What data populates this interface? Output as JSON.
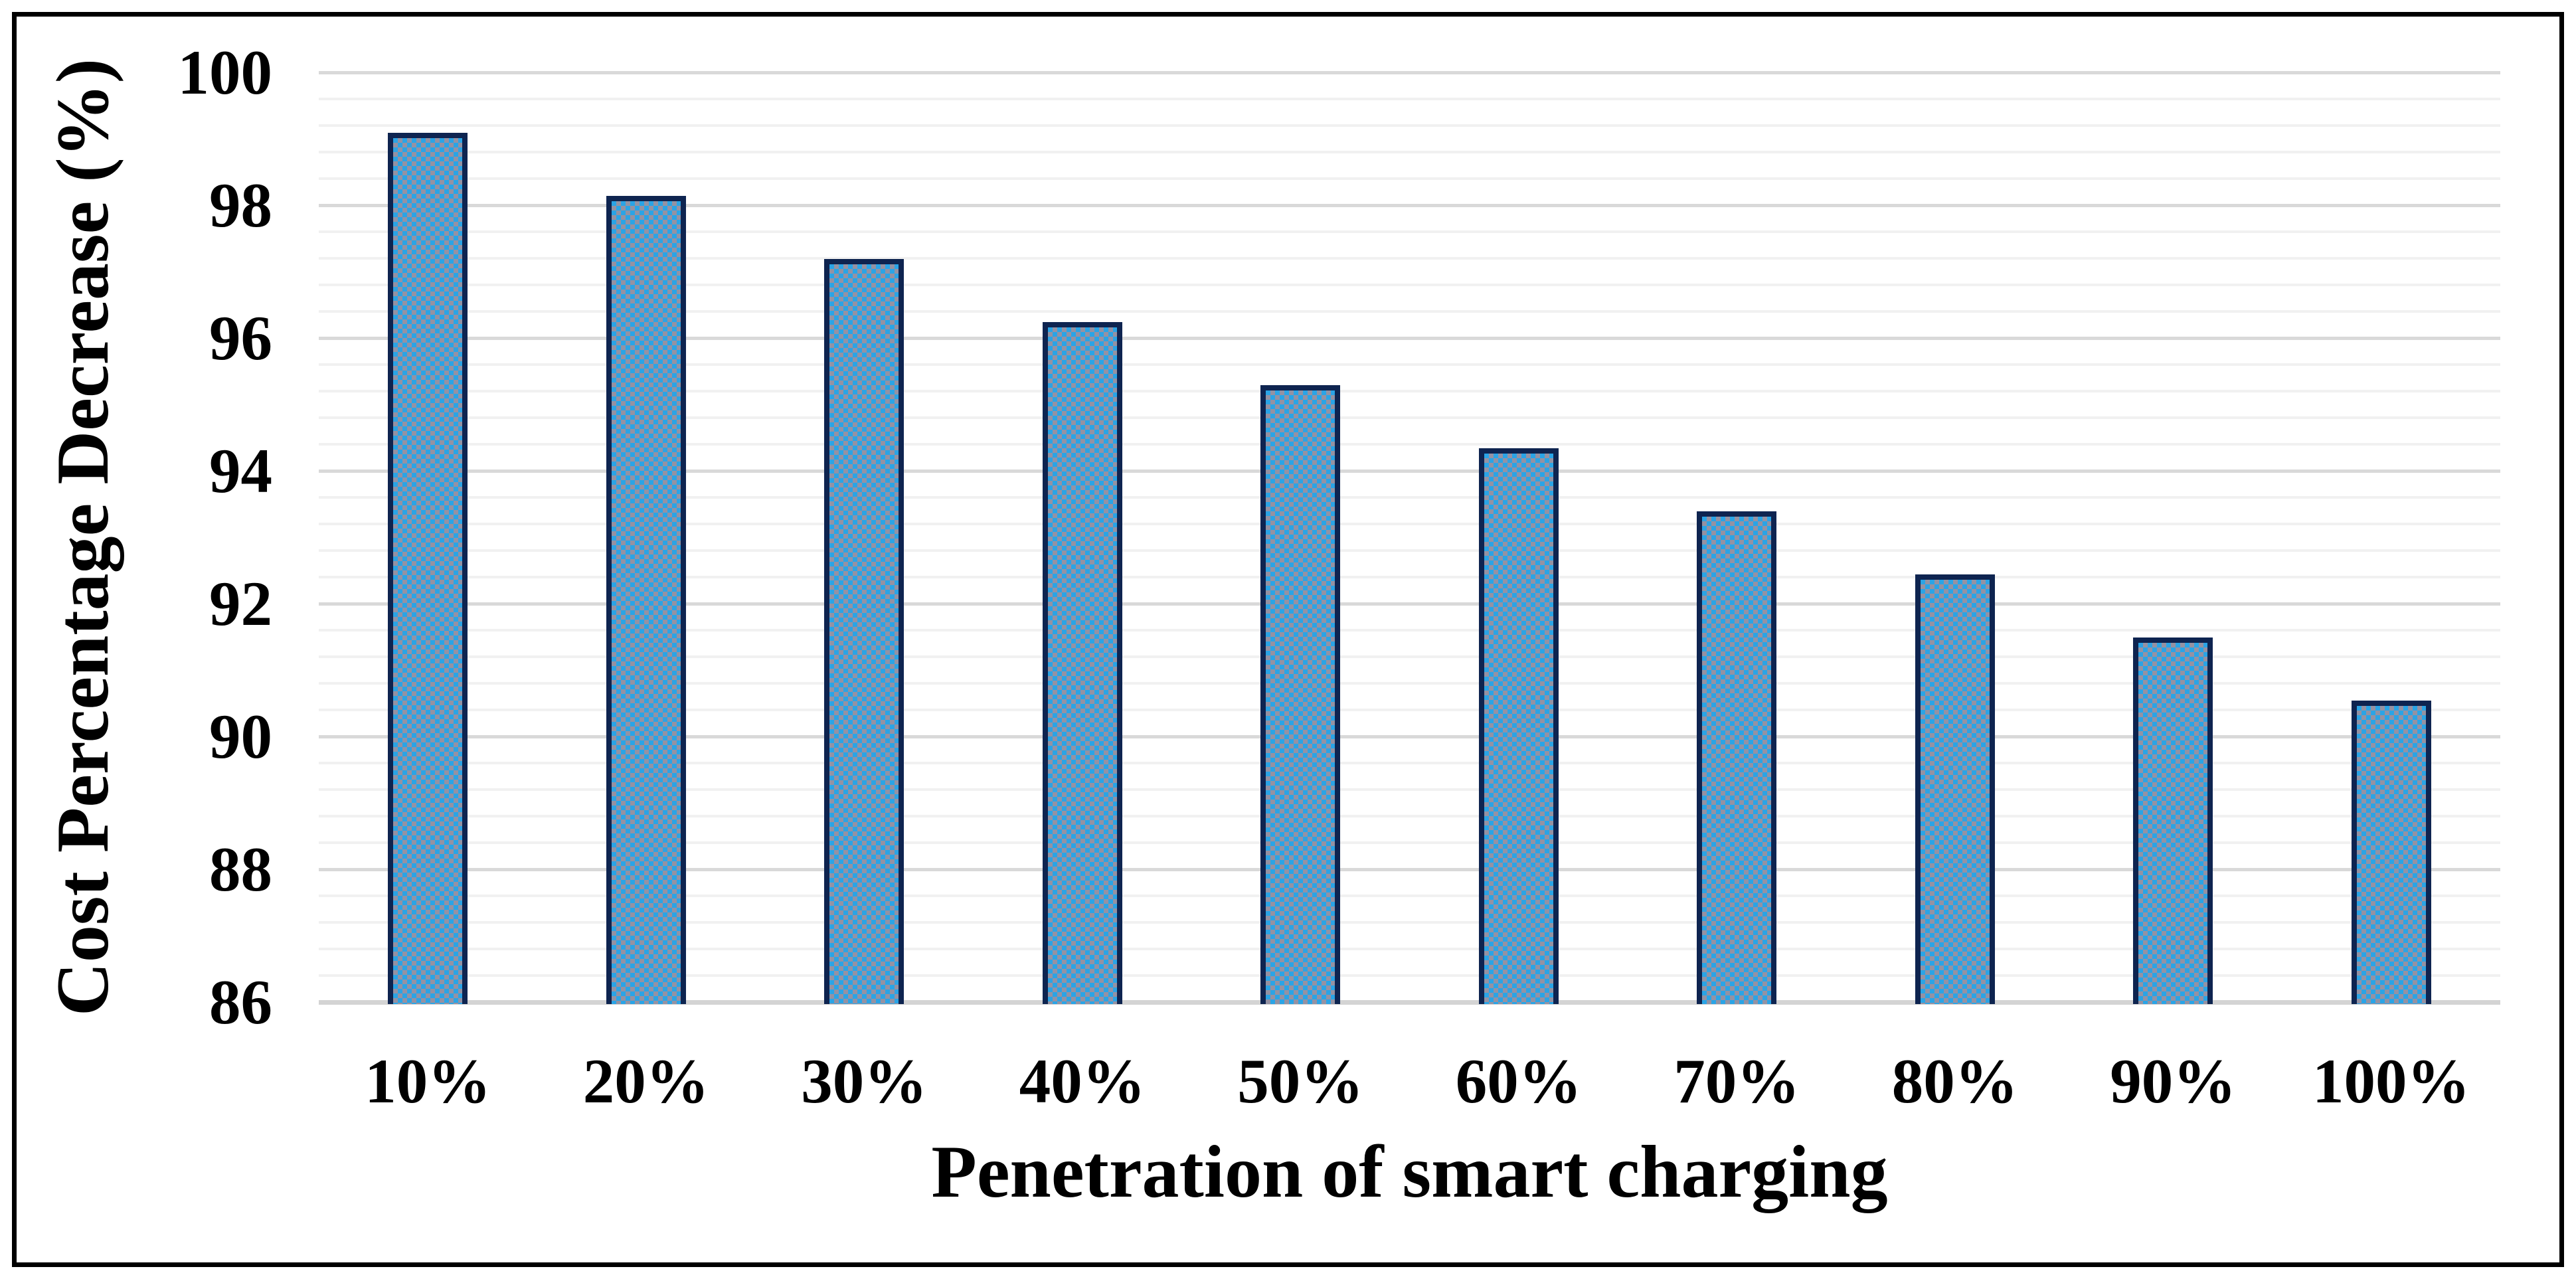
{
  "chart_data": {
    "type": "bar",
    "title": "",
    "categories": [
      "10%",
      "20%",
      "30%",
      "40%",
      "50%",
      "60%",
      "70%",
      "80%",
      "90%",
      "100%"
    ],
    "values": [
      99.05,
      98.1,
      97.15,
      96.2,
      95.25,
      94.3,
      93.35,
      92.4,
      91.45,
      90.5
    ],
    "xlabel": "Penetration of smart charging",
    "ylabel": "Cost Percentage Decrease (%)",
    "ylim": [
      86,
      100
    ],
    "y_major_unit": 2,
    "y_minor_unit": 0.4,
    "y_tick_labels": [
      "100",
      "98",
      "96",
      "94",
      "92",
      "90",
      "88",
      "86"
    ],
    "grid": "horizontal major+minor",
    "legend": "none"
  },
  "style": {
    "bar_fill_blue": "#2aa4e6",
    "bar_fill_gray": "#9492a3",
    "bar_border": "#0e2450",
    "grid_major": "#d9d9d9",
    "grid_minor": "#f1f1f1",
    "axis_line": "#d4d4d4",
    "frame_color": "#000000",
    "text_color": "#000000"
  }
}
